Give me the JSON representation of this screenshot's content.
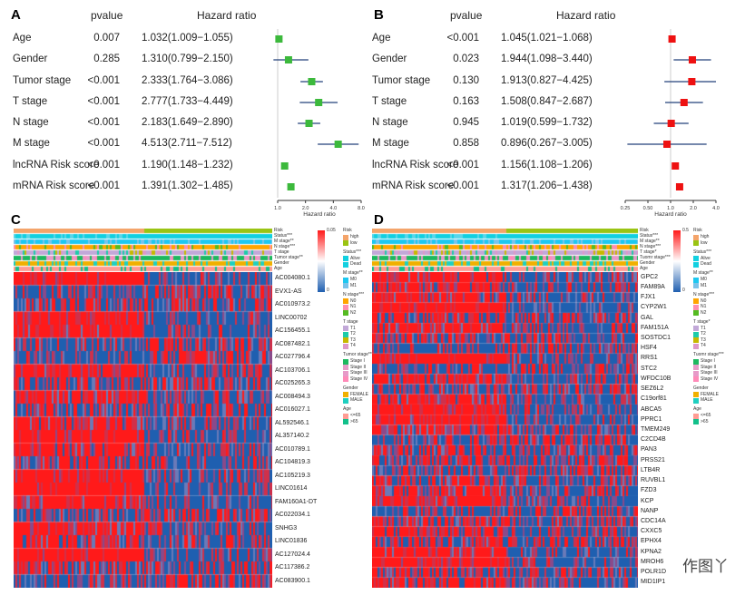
{
  "chart_data": [
    {
      "panel": "A",
      "type": "forest",
      "headers": [
        "pvalue",
        "Hazard ratio"
      ],
      "xlabel": "Hazard ratio",
      "x_scale": "log2",
      "xticks": [
        "1.0",
        "2.0",
        "4.0",
        "8.0"
      ],
      "xlim": [
        1.0,
        8.0
      ],
      "marker_color": "#3cb93c",
      "rows": [
        {
          "label": "Age",
          "pvalue": "0.007",
          "hr_text": "1.032(1.009−1.055)",
          "hr": 1.032,
          "lo": 1.009,
          "hi": 1.055
        },
        {
          "label": "Gender",
          "pvalue": "0.285",
          "hr_text": "1.310(0.799−2.150)",
          "hr": 1.31,
          "lo": 0.799,
          "hi": 2.15
        },
        {
          "label": "Tumor stage",
          "pvalue": "<0.001",
          "hr_text": "2.333(1.764−3.086)",
          "hr": 2.333,
          "lo": 1.764,
          "hi": 3.086
        },
        {
          "label": "T stage",
          "pvalue": "<0.001",
          "hr_text": "2.777(1.733−4.449)",
          "hr": 2.777,
          "lo": 1.733,
          "hi": 4.449
        },
        {
          "label": "N stage",
          "pvalue": "<0.001",
          "hr_text": "2.183(1.649−2.890)",
          "hr": 2.183,
          "lo": 1.649,
          "hi": 2.89
        },
        {
          "label": "M stage",
          "pvalue": "<0.001",
          "hr_text": "4.513(2.711−7.512)",
          "hr": 4.513,
          "lo": 2.711,
          "hi": 7.512
        },
        {
          "label": "lncRNA Risk score",
          "pvalue": "<0.001",
          "hr_text": "1.190(1.148−1.232)",
          "hr": 1.19,
          "lo": 1.148,
          "hi": 1.232
        },
        {
          "label": "mRNA Risk score",
          "pvalue": "<0.001",
          "hr_text": "1.391(1.302−1.485)",
          "hr": 1.391,
          "lo": 1.302,
          "hi": 1.485
        }
      ]
    },
    {
      "panel": "B",
      "type": "forest",
      "headers": [
        "pvalue",
        "Hazard ratio"
      ],
      "xlabel": "Hazard ratio",
      "x_scale": "log2",
      "xticks": [
        "0.25",
        "0.50",
        "1.0",
        "2.0",
        "4.0"
      ],
      "xlim": [
        0.25,
        4.0
      ],
      "marker_color": "#ee1111",
      "rows": [
        {
          "label": "Age",
          "pvalue": "<0.001",
          "hr_text": "1.045(1.021−1.068)",
          "hr": 1.045,
          "lo": 1.021,
          "hi": 1.068
        },
        {
          "label": "Gender",
          "pvalue": "0.023",
          "hr_text": "1.944(1.098−3.440)",
          "hr": 1.944,
          "lo": 1.098,
          "hi": 3.44
        },
        {
          "label": "Tumor stage",
          "pvalue": "0.130",
          "hr_text": "1.913(0.827−4.425)",
          "hr": 1.913,
          "lo": 0.827,
          "hi": 4.425
        },
        {
          "label": "T stage",
          "pvalue": "0.163",
          "hr_text": "1.508(0.847−2.687)",
          "hr": 1.508,
          "lo": 0.847,
          "hi": 2.687
        },
        {
          "label": "N stage",
          "pvalue": "0.945",
          "hr_text": "1.019(0.599−1.732)",
          "hr": 1.019,
          "lo": 0.599,
          "hi": 1.732
        },
        {
          "label": "M stage",
          "pvalue": "0.858",
          "hr_text": "0.896(0.267−3.005)",
          "hr": 0.896,
          "lo": 0.267,
          "hi": 3.005
        },
        {
          "label": "lncRNA Risk score",
          "pvalue": "<0.001",
          "hr_text": "1.156(1.108−1.206)",
          "hr": 1.156,
          "lo": 1.108,
          "hi": 1.206
        },
        {
          "label": "mRNA Risk score",
          "pvalue": "<0.001",
          "hr_text": "1.317(1.206−1.438)",
          "hr": 1.317,
          "lo": 1.206,
          "hi": 1.438
        }
      ]
    },
    {
      "panel": "C",
      "type": "heatmap",
      "colorbar": {
        "max": "0.05",
        "min": "0",
        "colors": [
          "#1f5fb0",
          "#ffffff",
          "#ff1a1a"
        ]
      },
      "annotations": [
        "Risk",
        "Status***",
        "M stage**",
        "N stage***",
        "T stage",
        "Tumor stage**",
        "Gender",
        "Age"
      ],
      "rows": [
        "AC004080.1",
        "EVX1-AS",
        "AC010973.2",
        "LINC00702",
        "AC156455.1",
        "AC087482.1",
        "AC027796.4",
        "AC103706.1",
        "AC025265.3",
        "AC008494.3",
        "AC016027.1",
        "AL592546.1",
        "AL357140.2",
        "AC010789.1",
        "AC104819.3",
        "AC105219.3",
        "LINC01614",
        "FAM160A1-DT",
        "AC022034.1",
        "SNHG3",
        "LINC01836",
        "AC127024.4",
        "AC117386.2",
        "AC083900.1"
      ],
      "legend": [
        {
          "title": "Risk",
          "items": [
            {
              "label": "high",
              "color": "#f4a46a"
            },
            {
              "label": "low",
              "color": "#9ac413"
            }
          ]
        },
        {
          "title": "Status***",
          "items": [
            {
              "label": "Alive",
              "color": "#12d0e0"
            },
            {
              "label": "Dead",
              "color": "#12d0e0"
            }
          ]
        },
        {
          "title": "M stage**",
          "items": [
            {
              "label": "M0",
              "color": "#1ec8f0"
            },
            {
              "label": "M1",
              "color": "#79c3ea"
            }
          ]
        },
        {
          "title": "N stage***",
          "items": [
            {
              "label": "N0",
              "color": "#ffa500"
            },
            {
              "label": "N1",
              "color": "#ff8fb0"
            },
            {
              "label": "N2",
              "color": "#55bb22"
            }
          ]
        },
        {
          "title": "T stage",
          "items": [
            {
              "label": "T1",
              "color": "#c2a8d8"
            },
            {
              "label": "T2",
              "color": "#1ecbaa"
            },
            {
              "label": "T3",
              "color": "#c7b800"
            },
            {
              "label": "T4",
              "color": "#dd98c8"
            }
          ]
        },
        {
          "title": "Tumor stage**",
          "items": [
            {
              "label": "Stage I",
              "color": "#1cb85f"
            },
            {
              "label": "Stage II",
              "color": "#e79ac8"
            },
            {
              "label": "Stage III",
              "color": "#e79ac8"
            },
            {
              "label": "Stage IV",
              "color": "#ff8ab8"
            }
          ]
        },
        {
          "title": "Gender",
          "items": [
            {
              "label": "FEMALE",
              "color": "#f0b000"
            },
            {
              "label": "MALE",
              "color": "#20cfc0"
            }
          ]
        },
        {
          "title": "Age",
          "items": [
            {
              "label": "<=65",
              "color": "#ff9c94"
            },
            {
              "label": ">65",
              "color": "#12c08a"
            }
          ]
        }
      ]
    },
    {
      "panel": "D",
      "type": "heatmap",
      "colorbar": {
        "max": "0.5",
        "min": "0",
        "colors": [
          "#1f5fb0",
          "#ffffff",
          "#ff1a1a"
        ]
      },
      "annotations": [
        "Risk",
        "Status***",
        "M stage**",
        "N stage***",
        "T stage*",
        "Tuomr stage***",
        "Gender",
        "Age"
      ],
      "rows": [
        "GPC2",
        "FAM89A",
        "FJX1",
        "CYP2W1",
        "GAL",
        "FAM151A",
        "SOSTDC1",
        "HSF4",
        "RRS1",
        "STC2",
        "WFDC10B",
        "SEZ6L2",
        "C19orf81",
        "ABCA5",
        "PPRC1",
        "TMEM249",
        "C2CD4B",
        "PAN3",
        "PRSS21",
        "LTB4R",
        "RUVBL1",
        "FZD3",
        "KCP",
        "NANP",
        "CDC14A",
        "CXXC5",
        "EPHX4",
        "KPNA2",
        "MROH6",
        "POLR1D",
        "MID1IP1"
      ],
      "legend": [
        {
          "title": "Risk",
          "items": [
            {
              "label": "high",
              "color": "#f4a46a"
            },
            {
              "label": "low",
              "color": "#9ac413"
            }
          ]
        },
        {
          "title": "Status***",
          "items": [
            {
              "label": "Alive",
              "color": "#12d0e0"
            },
            {
              "label": "Dead",
              "color": "#12d0e0"
            }
          ]
        },
        {
          "title": "M stage**",
          "items": [
            {
              "label": "M0",
              "color": "#1ec8f0"
            },
            {
              "label": "M1",
              "color": "#79c3ea"
            }
          ]
        },
        {
          "title": "N stage***",
          "items": [
            {
              "label": "N0",
              "color": "#ffa500"
            },
            {
              "label": "N1",
              "color": "#ff8fb0"
            },
            {
              "label": "N2",
              "color": "#55bb22"
            }
          ]
        },
        {
          "title": "T stage*",
          "items": [
            {
              "label": "T1",
              "color": "#c2a8d8"
            },
            {
              "label": "T2",
              "color": "#1ecbaa"
            },
            {
              "label": "T3",
              "color": "#c7b800"
            },
            {
              "label": "T4",
              "color": "#dd98c8"
            }
          ]
        },
        {
          "title": "Tuomr stage***",
          "items": [
            {
              "label": "Stage I",
              "color": "#1cb85f"
            },
            {
              "label": "Stage II",
              "color": "#e79ac8"
            },
            {
              "label": "Stage III",
              "color": "#e79ac8"
            },
            {
              "label": "Stage IV",
              "color": "#ff8ab8"
            }
          ]
        },
        {
          "title": "Gender",
          "items": [
            {
              "label": "FEMALE",
              "color": "#f0b000"
            },
            {
              "label": "MALE",
              "color": "#20cfc0"
            }
          ]
        },
        {
          "title": "Age",
          "items": [
            {
              "label": "<=65",
              "color": "#ff9c94"
            },
            {
              "label": ">65",
              "color": "#12c08a"
            }
          ]
        }
      ]
    }
  ],
  "panels": {
    "A": "A",
    "B": "B",
    "C": "C",
    "D": "D"
  },
  "watermark": "作图丫"
}
